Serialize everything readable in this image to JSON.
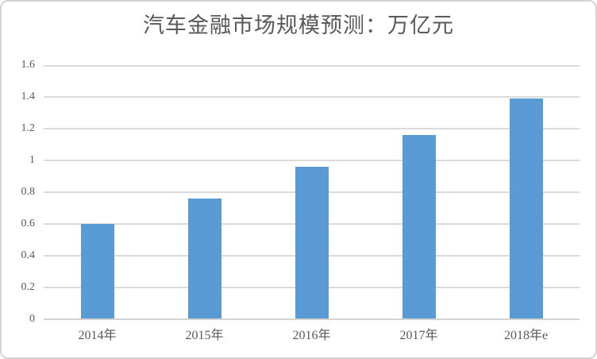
{
  "chart_data": {
    "type": "bar",
    "title": "汽车金融市场规模预测：万亿元",
    "categories": [
      "2014年",
      "2015年",
      "2016年",
      "2017年",
      "2018年e"
    ],
    "values": [
      0.6,
      0.76,
      0.96,
      1.16,
      1.39
    ],
    "xlabel": "",
    "ylabel": "",
    "ylim": [
      0,
      1.6
    ],
    "yticks": [
      {
        "value": 0,
        "label": "0"
      },
      {
        "value": 0.2,
        "label": "0.2"
      },
      {
        "value": 0.4,
        "label": "0.4"
      },
      {
        "value": 0.6,
        "label": "0.6"
      },
      {
        "value": 0.8,
        "label": "0.8"
      },
      {
        "value": 1,
        "label": "1"
      },
      {
        "value": 1.2,
        "label": "1.2"
      },
      {
        "value": 1.4,
        "label": "1.4"
      },
      {
        "value": 1.6,
        "label": "1.6"
      }
    ],
    "grid": true,
    "legend_position": "none",
    "colors": {
      "bar": "#5B9BD5",
      "gridline": "#DBDBDB",
      "axis_line": "#D4D4D4",
      "text": "#595959",
      "background": "#FFFFFF",
      "frame_border": "#D4D4D4"
    }
  }
}
